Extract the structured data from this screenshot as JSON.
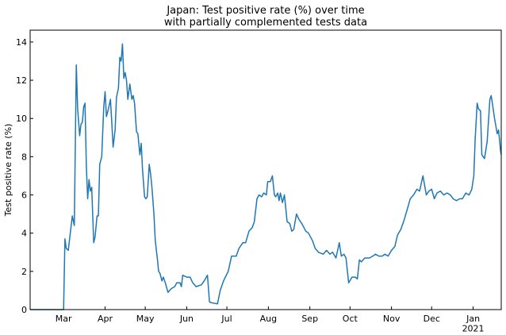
{
  "chart_data": {
    "type": "line",
    "title": "Japan: Test positive rate (%) over time\nwith partially complemented tests data",
    "y_label": "Test positive rate (%)",
    "color": "#1f77b4",
    "x": [
      -25,
      -10,
      0,
      1,
      2,
      3.5,
      6.5,
      8,
      9.5,
      10.5,
      12,
      13,
      14,
      15,
      16,
      17,
      18,
      19,
      20,
      21,
      22.5,
      23.5,
      25,
      26,
      27,
      28.5,
      30,
      31,
      32,
      33.5,
      35,
      36,
      37,
      38.5,
      39.5,
      41,
      42,
      43,
      44,
      45,
      46,
      47,
      48,
      49.5,
      51,
      52,
      53,
      54.5,
      55.5,
      57,
      58,
      59,
      60.5,
      61.5,
      62.5,
      64,
      65,
      66,
      67.5,
      68.5,
      70,
      71,
      72,
      73.5,
      74.5,
      76,
      78,
      80.5,
      83,
      84.5,
      87,
      88,
      89,
      92,
      94.5,
      96.5,
      99,
      103,
      105,
      107.5,
      109,
      111,
      115,
      117,
      119.5,
      123,
      125.5,
      129,
      131,
      134,
      136,
      138.5,
      141,
      142.5,
      144.5,
      146,
      148,
      149.5,
      151.5,
      152.5,
      154.5,
      156,
      157.5,
      158.5,
      160,
      161,
      162,
      163.5,
      165,
      167,
      169,
      170.5,
      172,
      174,
      176,
      178,
      181,
      183,
      186,
      188,
      190.5,
      194,
      196.5,
      199,
      201,
      203.5,
      206,
      207.5,
      209.5,
      211,
      213,
      215.5,
      218,
      219.5,
      221,
      222.5,
      225,
      228.5,
      231,
      233,
      235.5,
      238,
      240,
      242.5,
      245,
      247.5,
      249.5,
      252,
      254.5,
      257,
      259,
      261.5,
      264,
      266,
      268.5,
      271,
      273,
      275,
      277,
      279,
      281.5,
      284,
      286.5,
      289,
      291,
      293.5,
      296,
      298,
      300.5,
      303,
      305,
      306.5,
      307.5,
      309,
      310,
      311.5,
      312.5,
      314.5,
      316.5,
      318.5,
      319.5,
      322,
      324,
      325,
      326.5,
      327
    ],
    "values": [
      0,
      0,
      0,
      3.7,
      3.2,
      3.1,
      4.9,
      4.4,
      12.8,
      10.5,
      9.1,
      9.7,
      9.8,
      10.6,
      10.8,
      7.5,
      5.8,
      6.8,
      6.2,
      6.4,
      3.5,
      3.8,
      4.9,
      4.9,
      7.6,
      8.0,
      10.6,
      11.4,
      10.1,
      10.5,
      11.0,
      9.8,
      8.5,
      9.4,
      11.1,
      11.6,
      13.2,
      13.0,
      13.9,
      12.1,
      12.4,
      12.0,
      11.0,
      11.8,
      11.0,
      11.2,
      10.8,
      9.3,
      9.2,
      8.1,
      8.7,
      7.3,
      5.9,
      5.8,
      5.9,
      7.6,
      7.1,
      6.4,
      5.0,
      3.6,
      2.7,
      2.0,
      1.9,
      1.5,
      1.7,
      1.4,
      0.9,
      1.1,
      1.2,
      1.4,
      1.4,
      1.2,
      1.8,
      1.7,
      1.7,
      1.4,
      1.2,
      1.3,
      1.5,
      1.8,
      0.4,
      0.35,
      0.3,
      1.0,
      1.5,
      2.0,
      2.8,
      2.8,
      3.2,
      3.5,
      3.5,
      4.1,
      4.3,
      4.6,
      5.8,
      6.0,
      5.9,
      6.1,
      6.0,
      6.7,
      6.7,
      7.0,
      6.0,
      5.9,
      6.1,
      5.7,
      6.1,
      5.6,
      6.0,
      4.6,
      4.5,
      4.1,
      4.2,
      5.0,
      4.7,
      4.5,
      4.1,
      4.0,
      3.6,
      3.2,
      3.0,
      2.9,
      3.1,
      2.9,
      3.0,
      2.7,
      3.5,
      2.8,
      2.9,
      2.7,
      1.4,
      1.7,
      1.7,
      1.6,
      2.6,
      2.5,
      2.7,
      2.7,
      2.8,
      2.9,
      2.8,
      2.8,
      2.9,
      2.8,
      3.1,
      3.3,
      3.9,
      4.2,
      4.7,
      5.3,
      5.8,
      6.0,
      6.3,
      6.2,
      7.0,
      6.0,
      6.2,
      6.3,
      5.8,
      6.1,
      6.2,
      6.0,
      6.1,
      6.0,
      5.8,
      5.7,
      5.8,
      5.8,
      6.1,
      6.0,
      6.3,
      7.0,
      8.9,
      10.8,
      10.5,
      10.4,
      8.1,
      7.9,
      8.8,
      11.0,
      11.2,
      10.0,
      9.2,
      9.4,
      8.3,
      8.1
    ],
    "xlim": [
      -25,
      327
    ],
    "xticks": [
      {
        "value": 0,
        "label": "Mar"
      },
      {
        "value": 31,
        "label": "Apr"
      },
      {
        "value": 61,
        "label": "May"
      },
      {
        "value": 92,
        "label": "Jun"
      },
      {
        "value": 122,
        "label": "Jul"
      },
      {
        "value": 153,
        "label": "Aug"
      },
      {
        "value": 184,
        "label": "Sep"
      },
      {
        "value": 214,
        "label": "Oct"
      },
      {
        "value": 245,
        "label": "Nov"
      },
      {
        "value": 275,
        "label": "Dec"
      },
      {
        "value": 306,
        "label": "Jan\n2021"
      }
    ],
    "ylim": [
      0,
      14.62
    ],
    "yticks": [
      0,
      2,
      4,
      6,
      8,
      10,
      12,
      14
    ]
  }
}
